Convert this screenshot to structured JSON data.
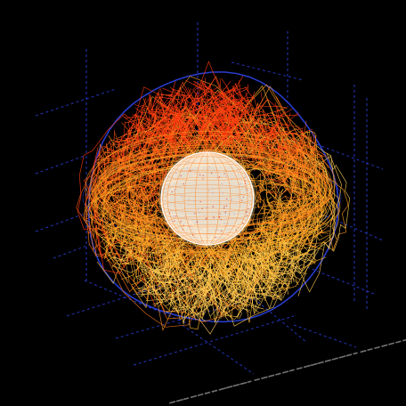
{
  "scene": {
    "background_color": "#000000",
    "grid_color": "#2a3fd6",
    "outer_shell_color": "#2a3fd6",
    "core_color": "#ffffff",
    "core_glow_color": "#ffd27a",
    "field_line_colors": [
      "#ff3a10",
      "#ff5a14",
      "#ff7a1a",
      "#ff9a22",
      "#ffb42a",
      "#ffcc55"
    ],
    "tick_label_color": "#9a9a9a",
    "grid_visible": true,
    "core_mesh": "wireframe-sphere",
    "field_lines": "dense-random-orange-gradient",
    "axis_tick_labels_legible": false
  }
}
